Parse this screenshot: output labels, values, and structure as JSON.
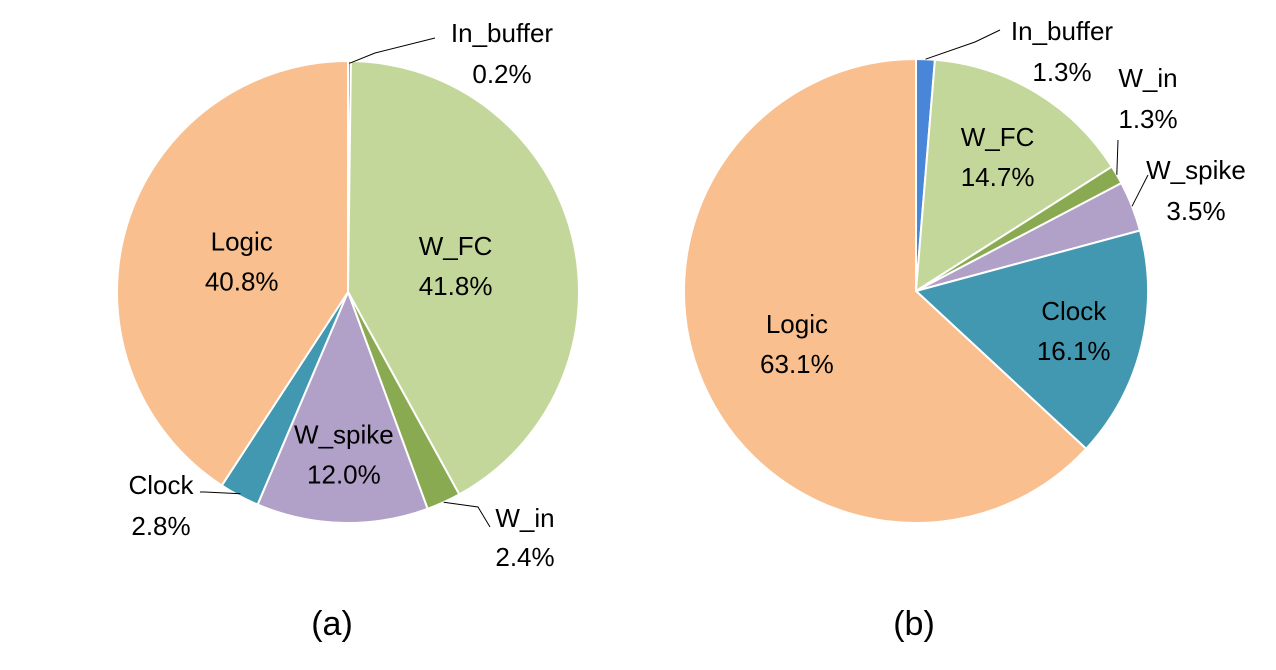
{
  "chart_data": [
    {
      "type": "pie",
      "caption": "(a)",
      "slices": [
        {
          "label": "In_buffer",
          "value": 0.2,
          "value_label": "0.2%",
          "color": "#4A86D8"
        },
        {
          "label": "W_FC",
          "value": 41.8,
          "value_label": "41.8%",
          "color": "#C4D79B"
        },
        {
          "label": "W_in",
          "value": 2.4,
          "value_label": "2.4%",
          "color": "#8AAA52"
        },
        {
          "label": "W_spike",
          "value": 12.0,
          "value_label": "12.0%",
          "color": "#B1A0C7"
        },
        {
          "label": "Clock",
          "value": 2.8,
          "value_label": "2.8%",
          "color": "#4298B0"
        },
        {
          "label": "Logic",
          "value": 40.8,
          "value_label": "40.8%",
          "color": "#F9BF8F"
        }
      ]
    },
    {
      "type": "pie",
      "caption": "(b)",
      "slices": [
        {
          "label": "In_buffer",
          "value": 1.3,
          "value_label": "1.3%",
          "color": "#4A86D8"
        },
        {
          "label": "W_FC",
          "value": 14.7,
          "value_label": "14.7%",
          "color": "#C4D79B"
        },
        {
          "label": "W_in",
          "value": 1.3,
          "value_label": "1.3%",
          "color": "#8AAA52"
        },
        {
          "label": "W_spike",
          "value": 3.5,
          "value_label": "3.5%",
          "color": "#B1A0C7"
        },
        {
          "label": "Clock",
          "value": 16.1,
          "value_label": "16.1%",
          "color": "#4298B0"
        },
        {
          "label": "Logic",
          "value": 63.1,
          "value_label": "63.1%",
          "color": "#F9BF8F"
        }
      ]
    }
  ]
}
